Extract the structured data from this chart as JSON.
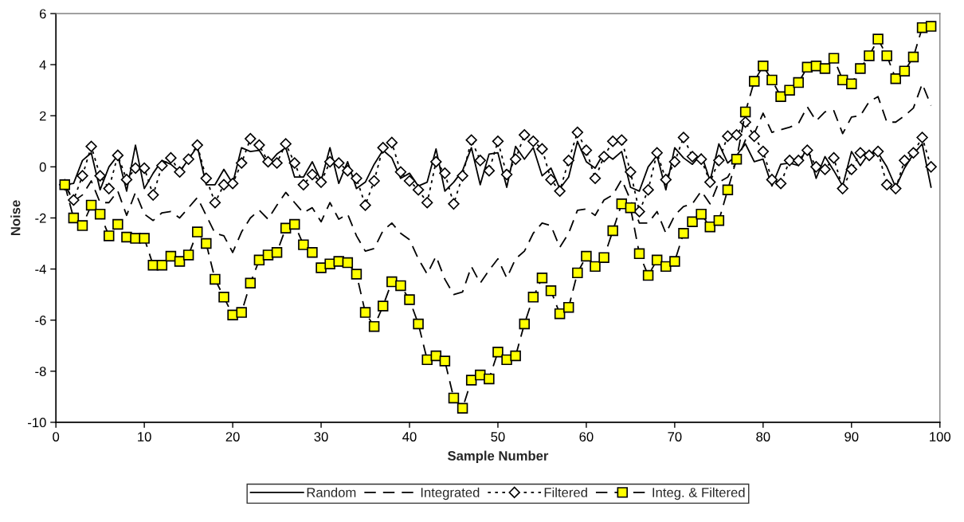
{
  "chart_data": {
    "type": "line",
    "xlabel": "Sample Number",
    "ylabel": "Noise",
    "x": [
      1,
      2,
      3,
      4,
      5,
      6,
      7,
      8,
      9,
      10,
      11,
      12,
      13,
      14,
      15,
      16,
      17,
      18,
      19,
      20,
      21,
      22,
      23,
      24,
      25,
      26,
      27,
      28,
      29,
      30,
      31,
      32,
      33,
      34,
      35,
      36,
      37,
      38,
      39,
      40,
      41,
      42,
      43,
      44,
      45,
      46,
      47,
      48,
      49,
      50,
      51,
      52,
      53,
      54,
      55,
      56,
      57,
      58,
      59,
      60,
      61,
      62,
      63,
      64,
      65,
      66,
      67,
      68,
      69,
      70,
      71,
      72,
      73,
      74,
      75,
      76,
      77,
      78,
      79,
      80,
      81,
      82,
      83,
      84,
      85,
      86,
      87,
      88,
      89,
      90,
      91,
      92,
      93,
      94,
      95,
      96,
      97,
      98,
      99
    ],
    "xlim": [
      0,
      100
    ],
    "xticks": [
      0,
      10,
      20,
      30,
      40,
      50,
      60,
      70,
      80,
      90,
      100
    ],
    "ylim": [
      -10,
      6
    ],
    "yticks": [
      -10,
      -8,
      -6,
      -4,
      -2,
      0,
      2,
      4,
      6
    ],
    "grid": false,
    "legend": "bottom",
    "series": [
      {
        "name": "Random",
        "line_style": "solid",
        "marker": "none",
        "values": [
          -0.7,
          -0.65,
          0.25,
          0.55,
          -0.9,
          0.0,
          0.45,
          -0.95,
          0.85,
          -0.85,
          -0.25,
          0.25,
          0.1,
          -0.2,
          0.3,
          0.8,
          -0.7,
          -0.7,
          -0.1,
          -0.65,
          0.75,
          0.6,
          0.65,
          0.1,
          0.5,
          0.75,
          -0.4,
          -0.4,
          0.2,
          -0.55,
          0.75,
          -0.65,
          0.2,
          -0.85,
          -0.6,
          0.1,
          0.65,
          0.35,
          -0.45,
          -0.25,
          -0.75,
          -0.6,
          0.7,
          -0.95,
          -0.6,
          -0.15,
          0.75,
          -0.7,
          0.5,
          0.55,
          -0.8,
          0.8,
          0.3,
          0.75,
          -0.35,
          -0.05,
          -0.85,
          -0.4,
          1.0,
          0.2,
          -0.05,
          0.55,
          0.3,
          0.6,
          -0.8,
          -0.95,
          0.0,
          0.45,
          -0.9,
          0.75,
          0.35,
          0.1,
          0.5,
          -0.55,
          0.9,
          0.15,
          0.45,
          0.9,
          0.2,
          0.3,
          -0.75,
          0.1,
          0.15,
          0.05,
          0.8,
          -0.45,
          0.4,
          -0.15,
          -0.75,
          0.6,
          0.05,
          0.55,
          0.55,
          0.0,
          -0.8,
          -0.05,
          0.5,
          0.9,
          -0.8
        ]
      },
      {
        "name": "Integrated",
        "line_style": "dashed",
        "marker": "none",
        "values": [
          -0.7,
          -1.35,
          -1.1,
          -0.55,
          -1.4,
          -1.4,
          -0.95,
          -1.9,
          -1.0,
          -1.85,
          -2.1,
          -1.8,
          -1.75,
          -2.0,
          -1.6,
          -1.2,
          -1.9,
          -2.6,
          -2.7,
          -3.35,
          -2.55,
          -2.0,
          -1.7,
          -2.05,
          -1.5,
          -1.0,
          -1.4,
          -1.8,
          -1.6,
          -2.15,
          -1.4,
          -2.05,
          -1.85,
          -2.7,
          -3.3,
          -3.2,
          -2.5,
          -2.2,
          -2.6,
          -2.85,
          -3.6,
          -4.2,
          -3.5,
          -4.4,
          -5.0,
          -4.9,
          -3.9,
          -4.55,
          -4.05,
          -3.6,
          -4.35,
          -3.6,
          -3.3,
          -2.6,
          -2.2,
          -2.3,
          -3.15,
          -2.6,
          -1.7,
          -1.65,
          -1.9,
          -1.3,
          -1.1,
          -0.5,
          -1.3,
          -2.2,
          -2.2,
          -1.75,
          -2.6,
          -1.9,
          -1.55,
          -1.45,
          -0.95,
          -1.45,
          -0.6,
          -0.4,
          0.2,
          1.05,
          1.3,
          2.1,
          1.35,
          1.45,
          1.55,
          1.7,
          2.35,
          1.8,
          2.15,
          2.2,
          1.3,
          1.95,
          2.0,
          2.55,
          2.75,
          1.75,
          1.75,
          2.0,
          2.3,
          3.25,
          2.4
        ]
      },
      {
        "name": "Filtered",
        "line_style": "dotted",
        "marker": "diamond",
        "color": "#ffffff",
        "values": [
          -0.7,
          -1.3,
          -0.35,
          0.8,
          -0.35,
          -0.85,
          0.45,
          -0.5,
          -0.05,
          -0.05,
          -1.1,
          0.05,
          0.35,
          -0.2,
          0.3,
          0.85,
          -0.45,
          -1.4,
          -0.7,
          -0.65,
          0.15,
          1.1,
          0.85,
          0.2,
          0.15,
          0.9,
          0.15,
          -0.7,
          -0.3,
          -0.6,
          0.2,
          0.15,
          -0.15,
          -0.45,
          -1.5,
          -0.55,
          0.75,
          0.95,
          -0.2,
          -0.55,
          -0.9,
          -1.4,
          0.2,
          -0.25,
          -1.45,
          -0.35,
          1.05,
          0.25,
          -0.15,
          1.0,
          -0.3,
          0.3,
          1.25,
          1.0,
          0.7,
          -0.5,
          -0.95,
          0.25,
          1.35,
          0.65,
          -0.45,
          0.4,
          1.0,
          1.05,
          -0.2,
          -1.75,
          -0.9,
          0.55,
          -0.5,
          0.2,
          1.15,
          0.4,
          0.3,
          -0.6,
          0.25,
          1.2,
          1.25,
          1.75,
          1.2,
          0.6,
          -0.5,
          -0.65,
          0.25,
          0.25,
          0.65,
          0.0,
          -0.1,
          0.35,
          -0.85,
          -0.1,
          0.55,
          0.45,
          0.6,
          -0.7,
          -0.85,
          0.25,
          0.55,
          1.15,
          0.0
        ]
      },
      {
        "name": "Integ. & Filtered",
        "line_style": "dashed",
        "marker": "square",
        "color": "#ffff00",
        "values": [
          -0.7,
          -2.0,
          -2.3,
          -1.5,
          -1.85,
          -2.7,
          -2.25,
          -2.75,
          -2.8,
          -2.8,
          -3.85,
          -3.85,
          -3.5,
          -3.7,
          -3.45,
          -2.55,
          -3.0,
          -4.4,
          -5.1,
          -5.8,
          -5.7,
          -4.55,
          -3.65,
          -3.45,
          -3.35,
          -2.4,
          -2.25,
          -3.05,
          -3.35,
          -3.95,
          -3.8,
          -3.7,
          -3.75,
          -4.2,
          -5.7,
          -6.25,
          -5.45,
          -4.5,
          -4.65,
          -5.2,
          -6.15,
          -7.55,
          -7.4,
          -7.6,
          -9.05,
          -9.45,
          -8.35,
          -8.15,
          -8.3,
          -7.25,
          -7.55,
          -7.4,
          -6.15,
          -5.1,
          -4.35,
          -4.85,
          -5.75,
          -5.5,
          -4.15,
          -3.5,
          -3.9,
          -3.55,
          -2.5,
          -1.45,
          -1.6,
          -3.4,
          -4.25,
          -3.65,
          -3.9,
          -3.7,
          -2.6,
          -2.15,
          -1.85,
          -2.35,
          -2.1,
          -0.9,
          0.3,
          2.15,
          3.35,
          3.95,
          3.4,
          2.75,
          3.0,
          3.3,
          3.9,
          3.95,
          3.85,
          4.25,
          3.4,
          3.25,
          3.85,
          4.35,
          5.0,
          4.35,
          3.45,
          3.75,
          4.3,
          5.45,
          5.5
        ]
      }
    ]
  }
}
